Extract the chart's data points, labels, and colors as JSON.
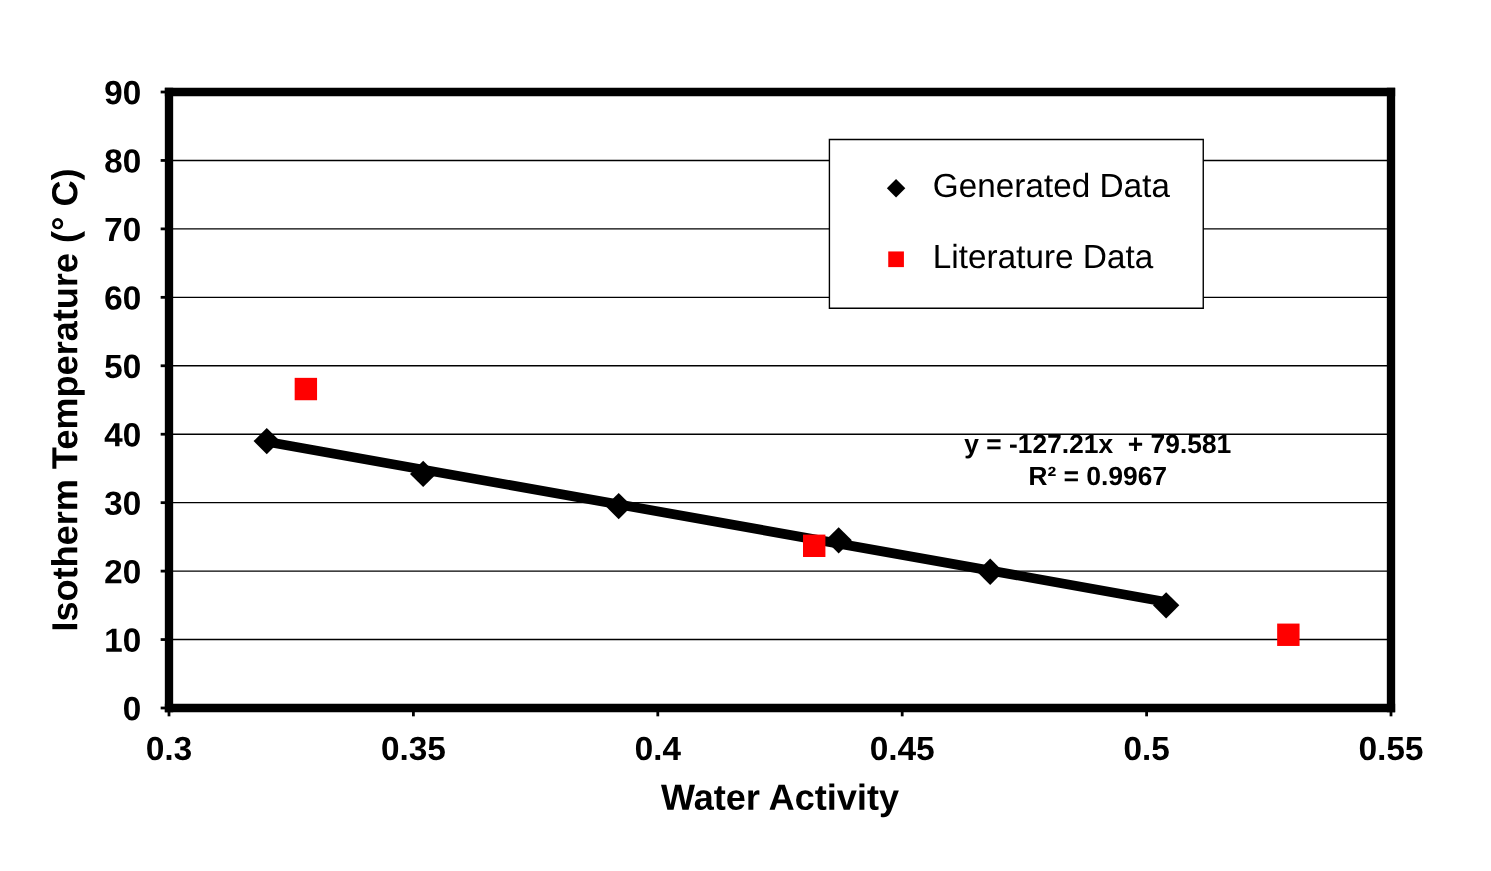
{
  "chart_data": {
    "type": "scatter",
    "xlabel": "Water Activity",
    "ylabel": "Isotherm Temperature (° C)",
    "xlim": [
      0.3,
      0.55
    ],
    "xticks": [
      0.3,
      0.35,
      0.4,
      0.45,
      0.5,
      0.55
    ],
    "ylim": [
      0,
      90
    ],
    "yticks": [
      0,
      10,
      20,
      30,
      40,
      50,
      60,
      70,
      80,
      90
    ],
    "grid": "y",
    "legend": "top right",
    "series": [
      {
        "name": "Generated Data",
        "color": "#000000",
        "marker": "diamond",
        "x": [
          0.32,
          0.352,
          0.392,
          0.437,
          0.468,
          0.504
        ],
        "values": [
          39.0,
          34.2,
          29.5,
          24.5,
          19.9,
          15.0
        ]
      },
      {
        "name": "Literature Data",
        "color": "#ff0000",
        "marker": "square",
        "x": [
          0.328,
          0.432,
          0.529
        ],
        "values": [
          46.6,
          23.7,
          10.7
        ]
      },
      {
        "type": "line",
        "color": "#000000",
        "marker": "none",
        "x": [
          0.32,
          0.504
        ],
        "values": [
          38.9,
          15.5
        ]
      }
    ],
    "annotations": [
      "y = -127.21x  + 79.581",
      "R² = 0.9967"
    ]
  }
}
